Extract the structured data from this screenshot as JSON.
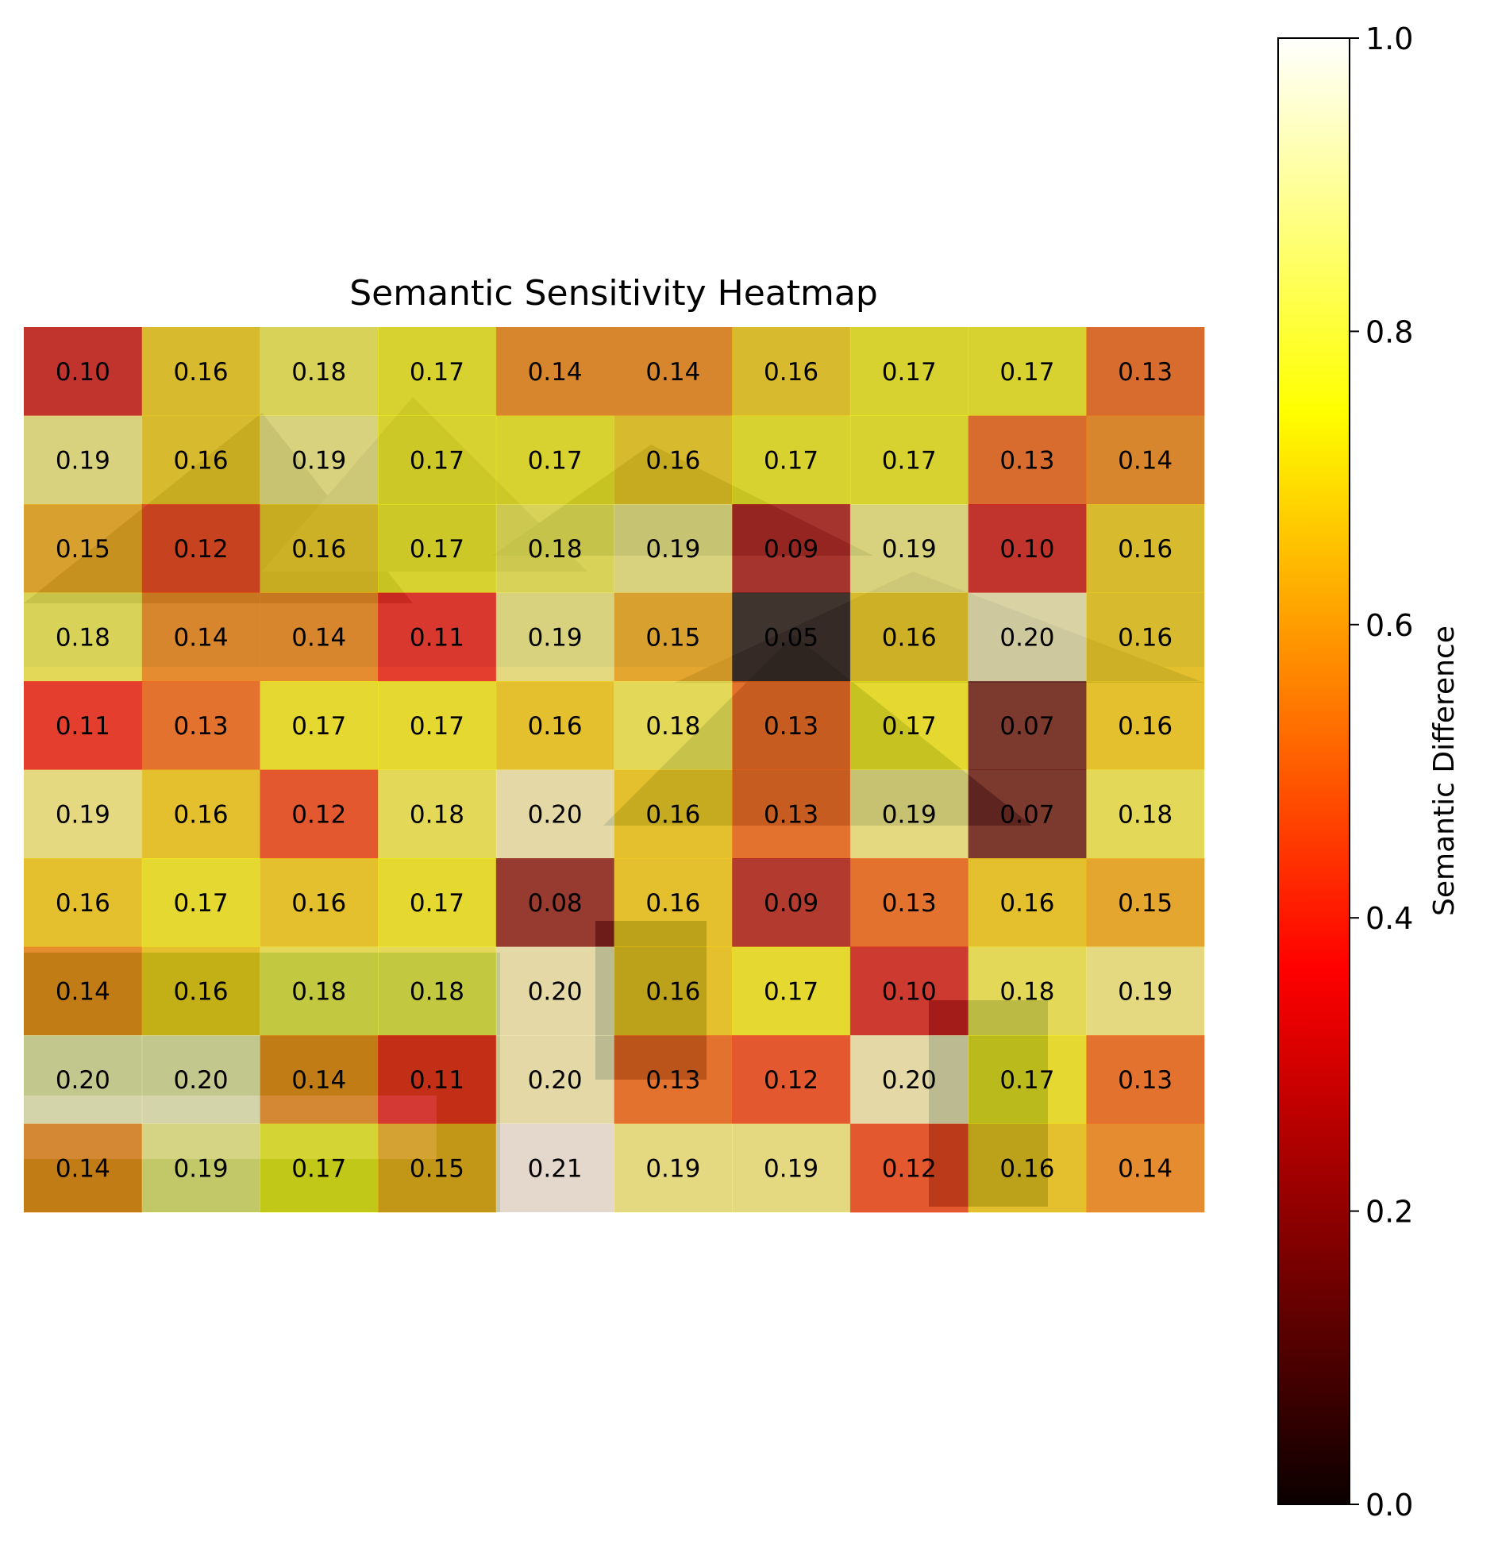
{
  "chart_data": {
    "type": "heatmap",
    "title": "Semantic Sensitivity Heatmap",
    "background": "photo of a brick house with shingled roofs",
    "colormap": "hot",
    "rows": 10,
    "cols": 10,
    "values": [
      [
        0.1,
        0.16,
        0.18,
        0.17,
        0.14,
        0.14,
        0.16,
        0.17,
        0.17,
        0.13
      ],
      [
        0.19,
        0.16,
        0.19,
        0.17,
        0.17,
        0.16,
        0.17,
        0.17,
        0.13,
        0.14
      ],
      [
        0.15,
        0.12,
        0.16,
        0.17,
        0.18,
        0.19,
        0.09,
        0.19,
        0.1,
        0.16
      ],
      [
        0.18,
        0.14,
        0.14,
        0.11,
        0.19,
        0.15,
        0.05,
        0.16,
        0.2,
        0.16
      ],
      [
        0.11,
        0.13,
        0.17,
        0.17,
        0.16,
        0.18,
        0.13,
        0.17,
        0.07,
        0.16
      ],
      [
        0.19,
        0.16,
        0.12,
        0.18,
        0.2,
        0.16,
        0.13,
        0.19,
        0.07,
        0.18
      ],
      [
        0.16,
        0.17,
        0.16,
        0.17,
        0.08,
        0.16,
        0.09,
        0.13,
        0.16,
        0.15
      ],
      [
        0.14,
        0.16,
        0.18,
        0.18,
        0.2,
        0.16,
        0.17,
        0.1,
        0.18,
        0.19
      ],
      [
        0.2,
        0.2,
        0.14,
        0.11,
        0.2,
        0.13,
        0.12,
        0.2,
        0.17,
        0.13
      ],
      [
        0.14,
        0.19,
        0.17,
        0.15,
        0.21,
        0.19,
        0.19,
        0.12,
        0.16,
        0.14
      ]
    ],
    "colorbar": {
      "label": "Semantic Difference",
      "range": [
        0.0,
        1.0
      ],
      "ticks": [
        "0.0",
        "0.2",
        "0.4",
        "0.6",
        "0.8",
        "1.0"
      ],
      "tick_values": [
        0.0,
        0.2,
        0.4,
        0.6,
        0.8,
        1.0
      ]
    }
  }
}
